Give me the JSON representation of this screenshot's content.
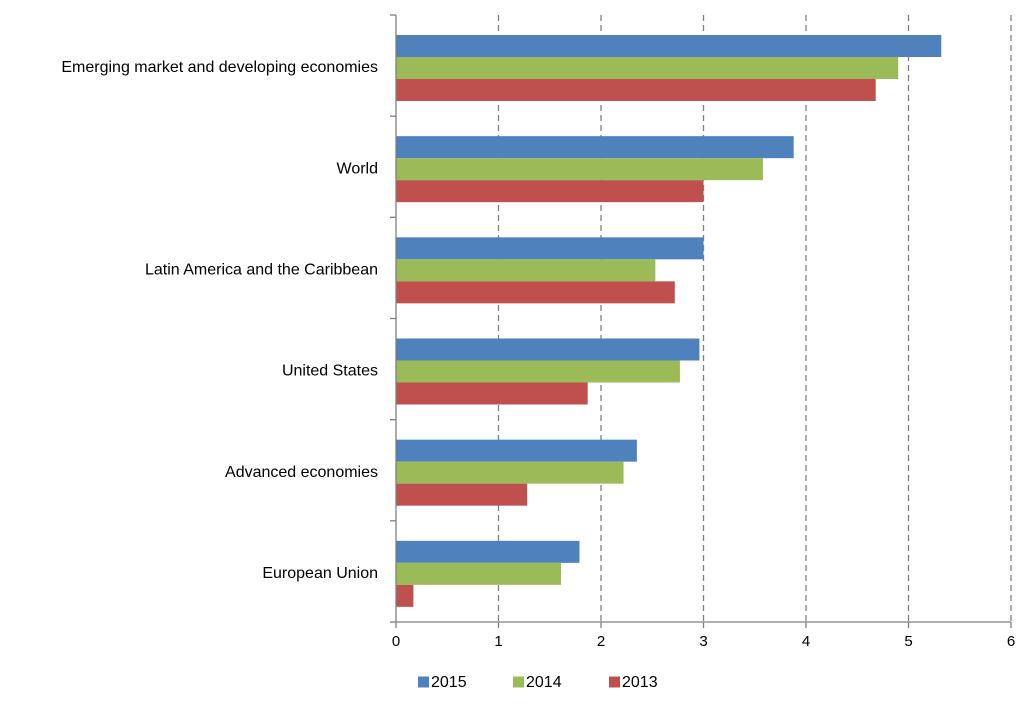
{
  "chart_data": {
    "type": "bar",
    "orientation": "horizontal",
    "categories": [
      "Emerging market and developing economies",
      "World",
      "Latin America and the Caribbean",
      "United States",
      "Advanced economies",
      "European Union"
    ],
    "series": [
      {
        "name": "2015",
        "color": "#4F81BD",
        "values": [
          5.32,
          3.88,
          3.0,
          2.96,
          2.35,
          1.79
        ]
      },
      {
        "name": "2014",
        "color": "#9BBB59",
        "values": [
          4.9,
          3.58,
          2.53,
          2.77,
          2.22,
          1.61
        ]
      },
      {
        "name": "2013",
        "color": "#C0504D",
        "values": [
          4.68,
          3.0,
          2.72,
          1.87,
          1.28,
          0.17
        ]
      }
    ],
    "xlim": [
      0,
      6
    ],
    "xticks": [
      "0",
      "1",
      "2",
      "3",
      "4",
      "5",
      "6"
    ],
    "grid": "vertical dashed",
    "legend": {
      "position": "bottom",
      "entries": [
        "2015",
        "2014",
        "2013"
      ]
    },
    "title": "",
    "xlabel": "",
    "ylabel": ""
  }
}
